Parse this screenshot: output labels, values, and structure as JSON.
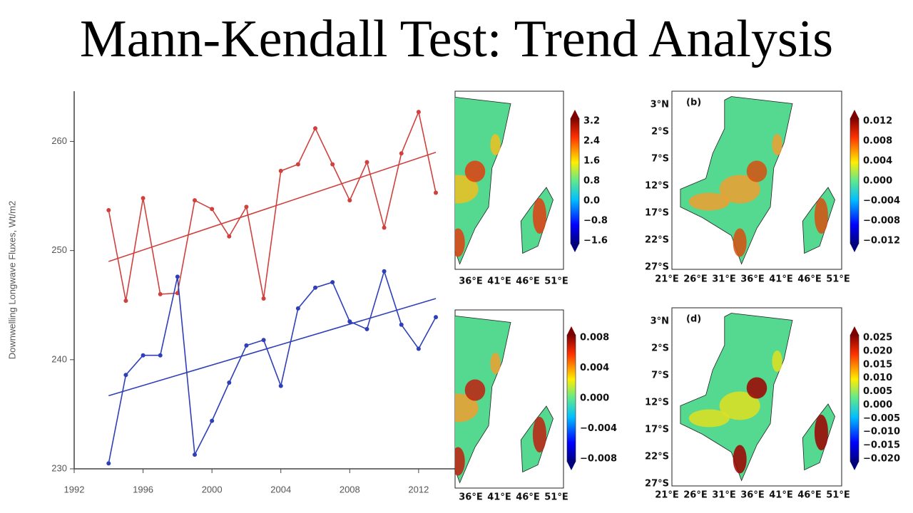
{
  "title": "Mann-Kendall Test: Trend Analysis",
  "chart_data": {
    "type": "line",
    "ylabel": "Downwelling Longwave Fluxes, Wt/m2",
    "x": [
      1994,
      1995,
      1996,
      1997,
      1998,
      1999,
      2000,
      2001,
      2002,
      2003,
      2004,
      2005,
      2006,
      2007,
      2008,
      2009,
      2010,
      2011,
      2012,
      2013
    ],
    "series": [
      {
        "color": "#d0413e",
        "values": [
          253.7,
          245.4,
          254.8,
          246.0,
          246.1,
          254.6,
          253.8,
          251.3,
          254.0,
          245.6,
          257.3,
          257.9,
          261.2,
          257.9,
          254.6,
          258.1,
          252.1,
          258.9,
          262.7,
          255.3
        ]
      },
      {
        "color": "#2f3fb8",
        "values": [
          230.5,
          238.6,
          240.4,
          240.4,
          247.6,
          231.3,
          234.4,
          237.9,
          241.3,
          241.8,
          237.6,
          244.7,
          246.6,
          247.1,
          243.5,
          242.8,
          248.1,
          243.2,
          241.0,
          243.9
        ]
      }
    ],
    "trend_lines": [
      {
        "color": "#d0413e",
        "x": [
          1994,
          2013
        ],
        "values": [
          249.0,
          259.0
        ]
      },
      {
        "color": "#2f3fb8",
        "x": [
          1994,
          2013
        ],
        "values": [
          236.7,
          245.6
        ]
      }
    ],
    "xlim": [
      1992,
      2014.2
    ],
    "ylim": [
      230,
      264.6
    ],
    "xticks": [
      1992,
      1996,
      2000,
      2004,
      2008,
      2012
    ],
    "yticks": [
      230,
      240,
      250,
      260
    ]
  },
  "maps": [
    {
      "lon_ticks": [
        "36°E",
        "41°E",
        "46°E",
        "51°E"
      ],
      "colorbar_ticks": [
        "3.2",
        "2.4",
        "1.6",
        "0.8",
        "0.0",
        "−0.8",
        "−1.6"
      ]
    },
    {
      "label": "(b)",
      "lat_ticks": [
        "3°N",
        "2°S",
        "7°S",
        "12°S",
        "17°S",
        "22°S",
        "27°S"
      ],
      "lon_ticks": [
        "21°E",
        "26°E",
        "31°E",
        "36°E",
        "41°E",
        "46°E",
        "51°E"
      ],
      "colorbar_ticks": [
        "0.012",
        "0.008",
        "0.004",
        "0.000",
        "−0.004",
        "−0.008",
        "−0.012"
      ]
    },
    {
      "lon_ticks": [
        "36°E",
        "41°E",
        "46°E",
        "51°E"
      ],
      "colorbar_ticks": [
        "0.008",
        "0.004",
        "0.000",
        "−0.004",
        "−0.008"
      ]
    },
    {
      "label": "(d)",
      "lat_ticks": [
        "3°N",
        "2°S",
        "7°S",
        "12°S",
        "17°S",
        "22°S",
        "27°S"
      ],
      "lon_ticks": [
        "21°E",
        "26°E",
        "31°E",
        "36°E",
        "41°E",
        "46°E",
        "51°E"
      ],
      "colorbar_ticks": [
        "0.025",
        "0.020",
        "0.015",
        "0.010",
        "0.005",
        "0.000",
        "−0.005",
        "−0.010",
        "−0.015",
        "−0.020"
      ]
    }
  ]
}
